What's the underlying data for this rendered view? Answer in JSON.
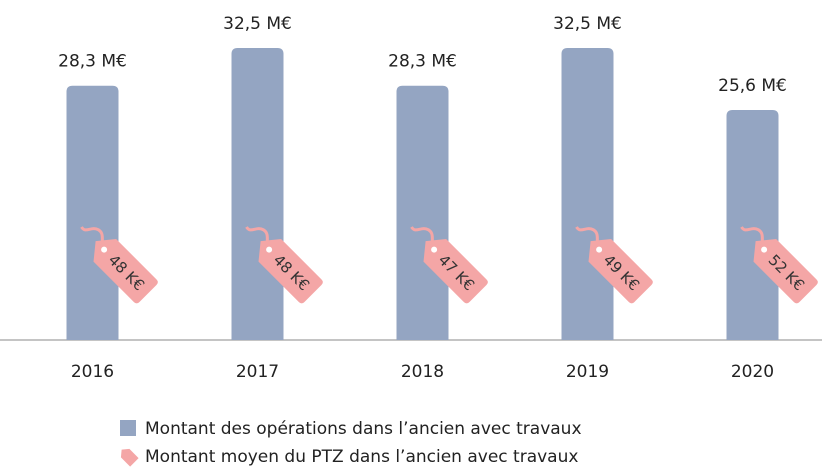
{
  "chart_data": {
    "type": "bar",
    "categories": [
      "2016",
      "2017",
      "2018",
      "2019",
      "2020"
    ],
    "series": [
      {
        "name": "Montant des opérations dans l’ancien avec travaux",
        "color": "#94a5c2",
        "values": [
          28.3,
          32.5,
          28.3,
          32.5,
          25.6
        ],
        "value_labels": [
          "28,3 M€",
          "32,5 M€",
          "28,3 M€",
          "32,5 M€",
          "25,6 M€"
        ]
      },
      {
        "name": "Montant moyen du PTZ dans l’ancien avec travaux",
        "color": "#f4a6a6",
        "values": [
          48,
          48,
          47,
          49,
          52
        ],
        "value_labels": [
          "48 K€",
          "48 K€",
          "47 K€",
          "49 K€",
          "52 K€"
        ]
      }
    ]
  }
}
